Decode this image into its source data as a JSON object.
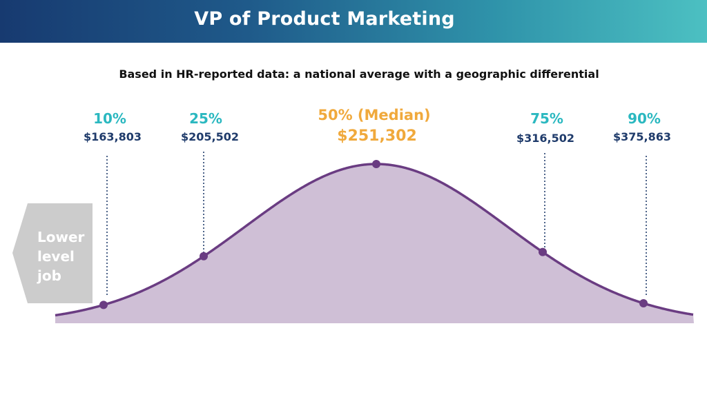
{
  "header": {
    "title": "VP of Product Marketing"
  },
  "subtitle": "Based in HR-reported data: a national average with a geographic differential",
  "lower_job": {
    "lines": [
      "Lower",
      "level",
      "job"
    ]
  },
  "colors": {
    "banner_start": "#173a70",
    "banner_end": "#4cc0c2",
    "curve_fill": "#cfbfd6",
    "curve_stroke": "#6a3c82",
    "percentile_teal": "#2bb8c0",
    "salary_navy": "#1f3b6b",
    "median_orange": "#f0a93c",
    "arrow_gray": "#cccccc"
  },
  "chart_data": {
    "type": "area",
    "title": "",
    "xlabel": "",
    "ylabel": "",
    "distribution": "normal",
    "percentiles": [
      {
        "label": "10%",
        "value": "$163,803",
        "p": 10,
        "salary": 163803
      },
      {
        "label": "25%",
        "value": "$205,502",
        "p": 25,
        "salary": 205502
      },
      {
        "label": "50% (Median)",
        "value": "$251,302",
        "p": 50,
        "salary": 251302
      },
      {
        "label": "75%",
        "value": "$316,502",
        "p": 75,
        "salary": 316502
      },
      {
        "label": "90%",
        "value": "$375,863",
        "p": 90,
        "salary": 375863
      }
    ]
  }
}
